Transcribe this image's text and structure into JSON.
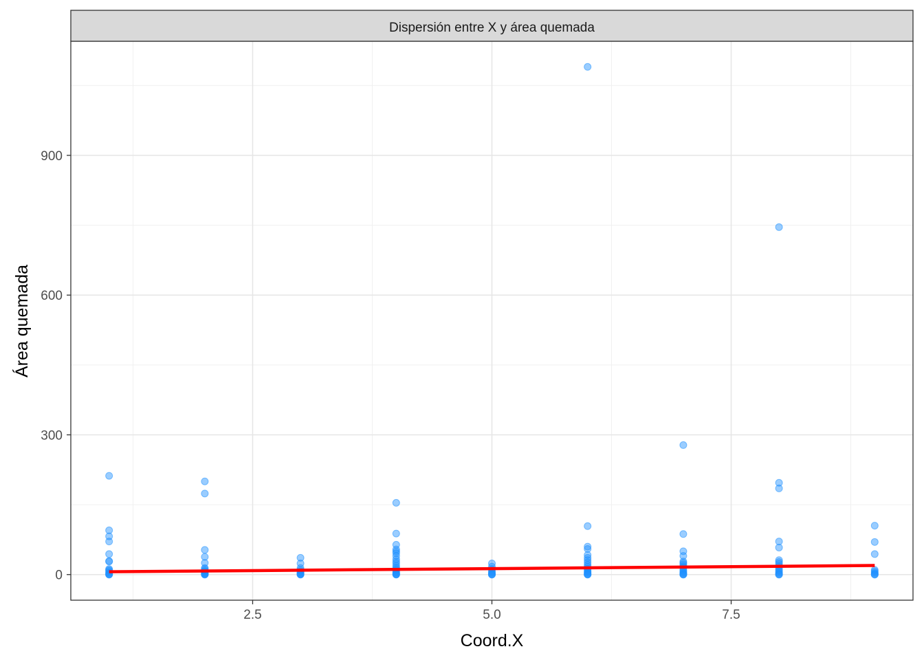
{
  "chart_data": {
    "type": "scatter",
    "facet_title": "Dispersión entre X y área quemada",
    "xlabel": "Coord.X",
    "ylabel": "Área quemada",
    "xlim": [
      0.6,
      9.4
    ],
    "ylim": [
      -55,
      1145
    ],
    "x_ticks": [
      2.5,
      5.0,
      7.5
    ],
    "x_tick_labels": [
      "2.5",
      "5.0",
      "7.5"
    ],
    "y_ticks": [
      0,
      300,
      600,
      900
    ],
    "y_tick_labels": [
      "0",
      "300",
      "600",
      "900"
    ],
    "grid": true,
    "point_color": "#1E90FF",
    "line_color": "#FF0000",
    "series": [
      {
        "type": "scatter",
        "points": [
          [
            1,
            212
          ],
          [
            1,
            95
          ],
          [
            1,
            82
          ],
          [
            1,
            71
          ],
          [
            1,
            44
          ],
          [
            1,
            29
          ],
          [
            1,
            28
          ],
          [
            1,
            12
          ],
          [
            1,
            10
          ],
          [
            1,
            8
          ],
          [
            1,
            5
          ],
          [
            1,
            3
          ],
          [
            1,
            1
          ],
          [
            1,
            0
          ],
          [
            1,
            0
          ],
          [
            2,
            200
          ],
          [
            2,
            174
          ],
          [
            2,
            53
          ],
          [
            2,
            38
          ],
          [
            2,
            25
          ],
          [
            2,
            14
          ],
          [
            2,
            12
          ],
          [
            2,
            9
          ],
          [
            2,
            7
          ],
          [
            2,
            5
          ],
          [
            2,
            3
          ],
          [
            2,
            2
          ],
          [
            2,
            1
          ],
          [
            2,
            0
          ],
          [
            2,
            0
          ],
          [
            3,
            36
          ],
          [
            3,
            24
          ],
          [
            3,
            14
          ],
          [
            3,
            10
          ],
          [
            3,
            7
          ],
          [
            3,
            5
          ],
          [
            3,
            3
          ],
          [
            3,
            2
          ],
          [
            3,
            1
          ],
          [
            3,
            0
          ],
          [
            3,
            0
          ],
          [
            4,
            154
          ],
          [
            4,
            88
          ],
          [
            4,
            64
          ],
          [
            4,
            54
          ],
          [
            4,
            50
          ],
          [
            4,
            46
          ],
          [
            4,
            40
          ],
          [
            4,
            33
          ],
          [
            4,
            28
          ],
          [
            4,
            24
          ],
          [
            4,
            19
          ],
          [
            4,
            15
          ],
          [
            4,
            12
          ],
          [
            4,
            9
          ],
          [
            4,
            6
          ],
          [
            4,
            4
          ],
          [
            4,
            2
          ],
          [
            4,
            1
          ],
          [
            4,
            0
          ],
          [
            4,
            0
          ],
          [
            5,
            24
          ],
          [
            5,
            17
          ],
          [
            5,
            12
          ],
          [
            5,
            8
          ],
          [
            5,
            5
          ],
          [
            5,
            3
          ],
          [
            5,
            1
          ],
          [
            5,
            0
          ],
          [
            5,
            0
          ],
          [
            6,
            1090
          ],
          [
            6,
            104
          ],
          [
            6,
            60
          ],
          [
            6,
            55
          ],
          [
            6,
            42
          ],
          [
            6,
            36
          ],
          [
            6,
            31
          ],
          [
            6,
            26
          ],
          [
            6,
            21
          ],
          [
            6,
            17
          ],
          [
            6,
            13
          ],
          [
            6,
            10
          ],
          [
            6,
            7
          ],
          [
            6,
            5
          ],
          [
            6,
            3
          ],
          [
            6,
            1
          ],
          [
            6,
            0
          ],
          [
            6,
            0
          ],
          [
            7,
            278
          ],
          [
            7,
            87
          ],
          [
            7,
            50
          ],
          [
            7,
            40
          ],
          [
            7,
            28
          ],
          [
            7,
            25
          ],
          [
            7,
            22
          ],
          [
            7,
            18
          ],
          [
            7,
            15
          ],
          [
            7,
            11
          ],
          [
            7,
            8
          ],
          [
            7,
            5
          ],
          [
            7,
            3
          ],
          [
            7,
            1
          ],
          [
            7,
            0
          ],
          [
            7,
            0
          ],
          [
            8,
            746
          ],
          [
            8,
            197
          ],
          [
            8,
            185
          ],
          [
            8,
            71
          ],
          [
            8,
            58
          ],
          [
            8,
            31
          ],
          [
            8,
            27
          ],
          [
            8,
            23
          ],
          [
            8,
            18
          ],
          [
            8,
            14
          ],
          [
            8,
            10
          ],
          [
            8,
            7
          ],
          [
            8,
            4
          ],
          [
            8,
            2
          ],
          [
            8,
            0
          ],
          [
            8,
            0
          ],
          [
            9,
            105
          ],
          [
            9,
            70
          ],
          [
            9,
            44
          ],
          [
            9,
            10
          ],
          [
            9,
            7
          ],
          [
            9,
            4
          ],
          [
            9,
            2
          ],
          [
            9,
            0
          ],
          [
            9,
            0
          ]
        ]
      },
      {
        "type": "line",
        "points": [
          [
            1,
            6
          ],
          [
            9,
            19.5
          ]
        ]
      }
    ]
  }
}
